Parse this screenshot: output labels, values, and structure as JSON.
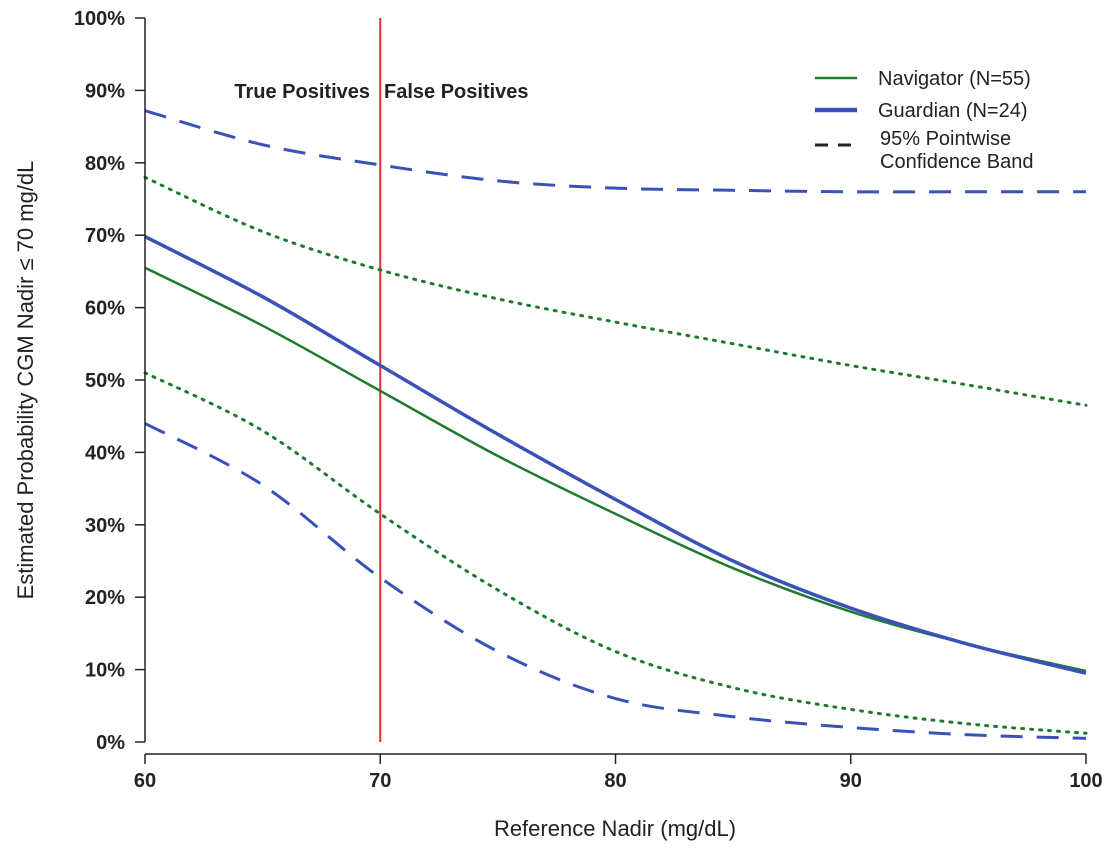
{
  "colors": {
    "navigator": "#1e7a2e",
    "guardian": "#3a52b8",
    "threshold": "#e0302a",
    "axis": "#222222"
  },
  "chart_data": {
    "type": "line",
    "xlabel": "Reference Nadir (mg/dL)",
    "ylabel": "Estimated Probability CGM Nadir ≤ 70 mg/dL",
    "xlim": [
      60,
      100
    ],
    "ylim": [
      0,
      100
    ],
    "x_ticks": [
      "60",
      "70",
      "80",
      "90",
      "100"
    ],
    "y_ticks": [
      "0%",
      "10%",
      "20%",
      "30%",
      "40%",
      "50%",
      "60%",
      "70%",
      "80%",
      "90%",
      "100%"
    ],
    "grid": false,
    "legend_position": "top-right",
    "legend": [
      {
        "label": "Navigator (N=55)",
        "style": "solid-thin",
        "color_key": "navigator"
      },
      {
        "label": "Guardian (N=24)",
        "style": "solid-thick",
        "color_key": "guardian"
      },
      {
        "label": "95% Pointwise",
        "label2": "Confidence Band",
        "style": "dashed",
        "color_key": "axis"
      }
    ],
    "annotations": {
      "left": "True Positives",
      "right": "False Positives",
      "threshold_x": 70
    },
    "x": [
      60,
      65,
      70,
      75,
      80,
      85,
      90,
      95,
      100
    ],
    "series": [
      {
        "name": "Navigator (N=55)",
        "role": "estimate",
        "color_key": "navigator",
        "values": [
          65.5,
          57.5,
          48.5,
          39.5,
          31.5,
          24.0,
          18.0,
          13.5,
          9.8
        ]
      },
      {
        "name": "Guardian (N=24)",
        "role": "estimate",
        "color_key": "guardian",
        "values": [
          69.8,
          61.5,
          52.0,
          42.5,
          33.5,
          25.0,
          18.5,
          13.5,
          9.5
        ]
      },
      {
        "role": "navigator-upper-95",
        "color_key": "navigator",
        "style": "dotted",
        "values": [
          78.0,
          70.5,
          65.2,
          61.2,
          58.0,
          55.0,
          52.0,
          49.3,
          46.5
        ]
      },
      {
        "role": "navigator-lower-95",
        "color_key": "navigator",
        "style": "dotted",
        "values": [
          51.0,
          43.0,
          31.5,
          21.0,
          12.5,
          7.5,
          4.5,
          2.5,
          1.2
        ]
      },
      {
        "role": "guardian-upper-95",
        "color_key": "guardian",
        "style": "dashed",
        "values": [
          87.2,
          82.5,
          79.7,
          77.5,
          76.5,
          76.2,
          76.0,
          76.0,
          76.0
        ]
      },
      {
        "role": "guardian-lower-95",
        "color_key": "guardian",
        "style": "dashed",
        "values": [
          44.0,
          35.5,
          22.7,
          12.5,
          6.0,
          3.5,
          2.0,
          1.0,
          0.5
        ]
      }
    ]
  }
}
